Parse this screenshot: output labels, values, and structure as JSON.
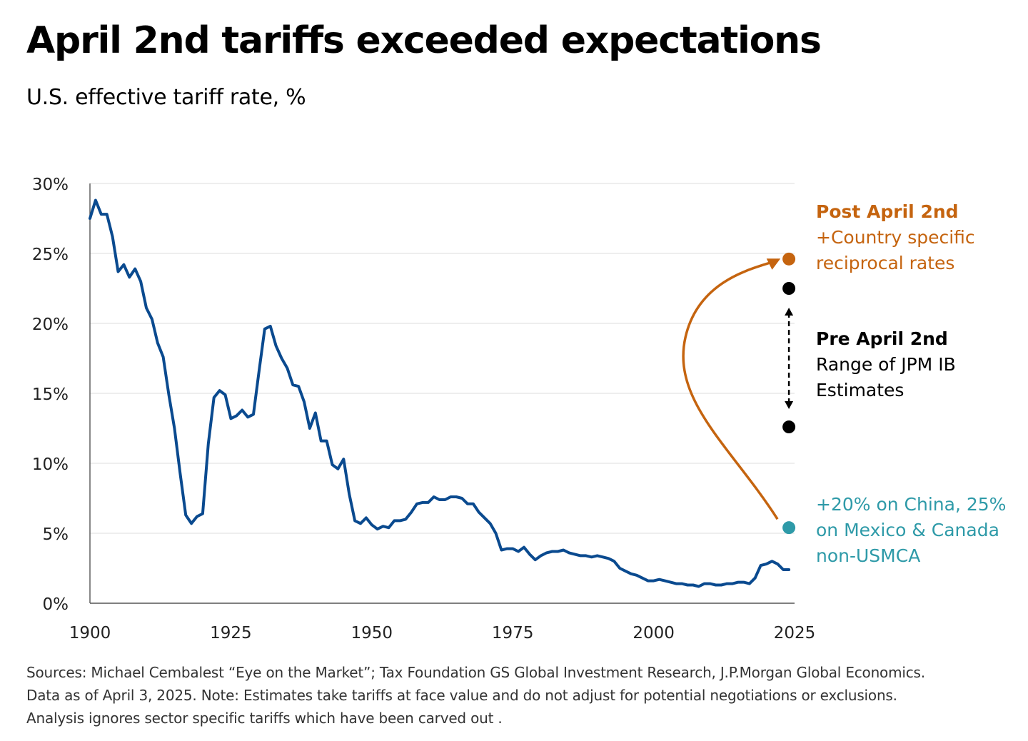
{
  "chart_data": {
    "type": "line",
    "title": "April 2nd tariffs exceeded expectations",
    "subtitle": "U.S. effective tariff rate, %",
    "xlabel": "",
    "ylabel": "",
    "xlim": [
      1900,
      2025
    ],
    "ylim": [
      0,
      30
    ],
    "x_ticks": [
      1900,
      1925,
      1950,
      1975,
      2000,
      2025
    ],
    "y_ticks": [
      0,
      5,
      10,
      15,
      20,
      25,
      30
    ],
    "y_tick_suffix": "%",
    "grid": "horizontal",
    "colors": {
      "series": "#0a4a8f",
      "post": "#c5640f",
      "pre": "#000000",
      "china": "#2e9aa8",
      "grid": "#e3e3e3",
      "axis": "#555555"
    },
    "series": [
      {
        "name": "U.S. effective tariff rate",
        "x": [
          1900,
          1901,
          1902,
          1903,
          1904,
          1905,
          1906,
          1907,
          1908,
          1909,
          1910,
          1911,
          1912,
          1913,
          1914,
          1915,
          1916,
          1917,
          1918,
          1919,
          1920,
          1921,
          1922,
          1923,
          1924,
          1925,
          1926,
          1927,
          1928,
          1929,
          1930,
          1931,
          1932,
          1933,
          1934,
          1935,
          1936,
          1937,
          1938,
          1939,
          1940,
          1941,
          1942,
          1943,
          1944,
          1945,
          1946,
          1947,
          1948,
          1949,
          1950,
          1951,
          1952,
          1953,
          1954,
          1955,
          1956,
          1957,
          1958,
          1959,
          1960,
          1961,
          1962,
          1963,
          1964,
          1965,
          1966,
          1967,
          1968,
          1969,
          1970,
          1971,
          1972,
          1973,
          1974,
          1975,
          1976,
          1977,
          1978,
          1979,
          1980,
          1981,
          1982,
          1983,
          1984,
          1985,
          1986,
          1987,
          1988,
          1989,
          1990,
          1991,
          1992,
          1993,
          1994,
          1995,
          1996,
          1997,
          1998,
          1999,
          2000,
          2001,
          2002,
          2003,
          2004,
          2005,
          2006,
          2007,
          2008,
          2009,
          2010,
          2011,
          2012,
          2013,
          2014,
          2015,
          2016,
          2017,
          2018,
          2019,
          2020,
          2021,
          2022,
          2023,
          2024
        ],
        "values": [
          27.5,
          28.8,
          27.8,
          27.8,
          26.2,
          23.7,
          24.2,
          23.3,
          23.9,
          23.0,
          21.1,
          20.3,
          18.6,
          17.6,
          14.9,
          12.5,
          9.3,
          6.3,
          5.7,
          6.2,
          6.4,
          11.4,
          14.7,
          15.2,
          14.9,
          13.2,
          13.4,
          13.8,
          13.3,
          13.5,
          16.6,
          19.6,
          19.8,
          18.4,
          17.5,
          16.8,
          15.6,
          15.5,
          14.4,
          12.5,
          13.6,
          11.6,
          11.6,
          9.9,
          9.6,
          10.3,
          7.8,
          5.9,
          5.7,
          6.1,
          5.6,
          5.3,
          5.5,
          5.4,
          5.9,
          5.9,
          6.0,
          6.5,
          7.1,
          7.2,
          7.2,
          7.6,
          7.4,
          7.4,
          7.6,
          7.6,
          7.5,
          7.1,
          7.1,
          6.5,
          6.1,
          5.7,
          5.0,
          3.8,
          3.9,
          3.9,
          3.7,
          4.0,
          3.5,
          3.1,
          3.4,
          3.6,
          3.7,
          3.7,
          3.8,
          3.6,
          3.5,
          3.4,
          3.4,
          3.3,
          3.4,
          3.3,
          3.2,
          3.0,
          2.5,
          2.3,
          2.1,
          2.0,
          1.8,
          1.6,
          1.6,
          1.7,
          1.6,
          1.5,
          1.4,
          1.4,
          1.3,
          1.3,
          1.2,
          1.4,
          1.4,
          1.3,
          1.3,
          1.4,
          1.4,
          1.5,
          1.5,
          1.4,
          1.8,
          2.7,
          2.8,
          3.0,
          2.8,
          2.4,
          2.4
        ]
      }
    ],
    "estimates": {
      "x": 2024,
      "post_april_2nd": 24.6,
      "pre_april_2nd_high": 22.5,
      "pre_april_2nd_low": 12.6,
      "china_mexico_canada": 5.4
    },
    "annotations": {
      "post_title": "Post April 2nd",
      "post_line1": "+Country specific",
      "post_line2": "reciprocal rates",
      "pre_title": "Pre April 2nd",
      "pre_line1": "Range of JPM IB",
      "pre_line2": "Estimates",
      "china_line1": "+20% on China, 25%",
      "china_line2": "on Mexico & Canada",
      "china_line3": "non-USMCA"
    }
  },
  "footnotes": {
    "line1": "Sources: Michael Cembalest “Eye on the Market”; Tax Foundation GS Global Investment Research, J.P.Morgan Global Economics.",
    "line2": "Data as of April 3, 2025. Note: Estimates take tariffs at face value and do not adjust for potential negotiations or exclusions.",
    "line3": "Analysis ignores sector specific tariffs which have been carved out ."
  }
}
